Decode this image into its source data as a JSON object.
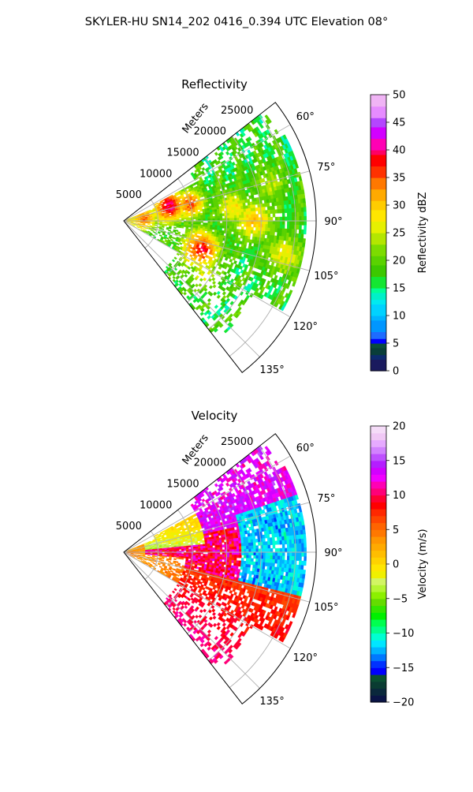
{
  "figure": {
    "title": "SKYLER-HU  SN14_202  0416_0.394 UTC Elevation 08°"
  },
  "chart_data": [
    {
      "type": "heatmap",
      "projection": "polar-sector",
      "title": "Reflectivity",
      "r_axis_label": "Meters",
      "r_ticks": [
        "5000",
        "10000",
        "15000",
        "20000",
        "25000"
      ],
      "r_tick_values": [
        5000,
        10000,
        15000,
        20000,
        25000
      ],
      "r_max": 28000,
      "theta_range_deg": [
        52,
        142
      ],
      "theta_ticks": [
        "60°",
        "75°",
        "90°",
        "105°",
        "120°",
        "135°"
      ],
      "theta_tick_values": [
        60,
        75,
        90,
        105,
        120,
        135
      ],
      "grid": true,
      "colorbar": {
        "label": "Reflectivity dBZ",
        "min": 0,
        "max": 50,
        "ticks": [
          "0",
          "5",
          "10",
          "15",
          "20",
          "25",
          "30",
          "35",
          "40",
          "45",
          "50"
        ],
        "tick_values": [
          0,
          5,
          10,
          15,
          20,
          25,
          30,
          35,
          40,
          45,
          50
        ],
        "colormap": "pyart_NWSRef"
      }
    },
    {
      "type": "heatmap",
      "projection": "polar-sector",
      "title": "Velocity",
      "r_axis_label": "Meters",
      "r_ticks": [
        "5000",
        "10000",
        "15000",
        "20000",
        "25000"
      ],
      "r_tick_values": [
        5000,
        10000,
        15000,
        20000,
        25000
      ],
      "r_max": 28000,
      "theta_range_deg": [
        52,
        142
      ],
      "theta_ticks": [
        "60°",
        "75°",
        "90°",
        "105°",
        "120°",
        "135°"
      ],
      "theta_tick_values": [
        60,
        75,
        90,
        105,
        120,
        135
      ],
      "grid": true,
      "colorbar": {
        "label": "Velocity (m/s)",
        "min": -20,
        "max": 20,
        "ticks": [
          "−20",
          "−15",
          "−10",
          "−5",
          "0",
          "5",
          "10",
          "15",
          "20"
        ],
        "tick_values": [
          -20,
          -15,
          -10,
          -5,
          0,
          5,
          10,
          15,
          20
        ],
        "colormap": "pyart_BuDRd18"
      }
    }
  ]
}
